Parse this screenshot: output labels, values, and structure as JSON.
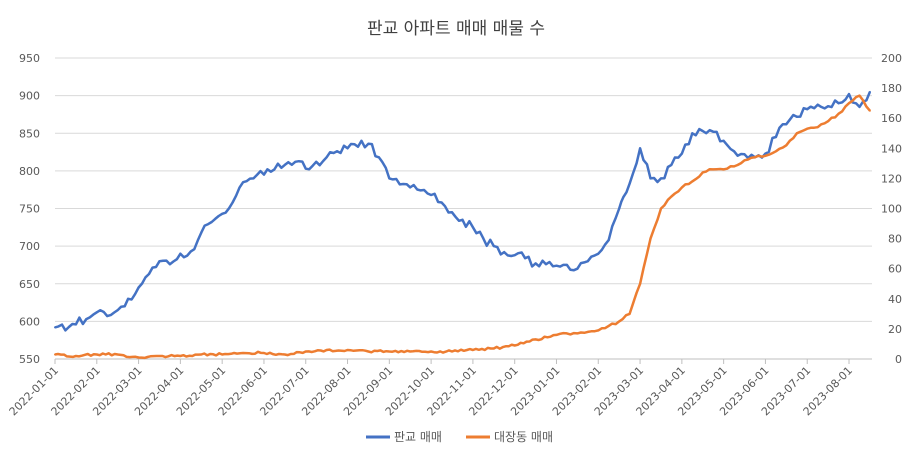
{
  "chart_data": {
    "type": "line",
    "title": "판교 아파트 매매 매물 수",
    "x_tick_labels": [
      "2022-01-01",
      "2022-02-01",
      "2022-03-01",
      "2022-04-01",
      "2022-05-01",
      "2022-06-01",
      "2022-07-01",
      "2022-08-01",
      "2022-09-01",
      "2022-10-01",
      "2022-11-01",
      "2022-12-01",
      "2023-01-01",
      "2023-02-01",
      "2023-03-01",
      "2023-04-01",
      "2023-05-01",
      "2023-06-01",
      "2023-07-01",
      "2023-08-01"
    ],
    "x_tick_month_offsets": [
      0,
      1,
      2,
      3,
      4,
      5,
      6,
      7,
      8,
      9,
      10,
      11,
      12,
      13,
      14,
      15,
      16,
      17,
      18,
      19
    ],
    "x_range_months": [
      0,
      19.55
    ],
    "y_left": {
      "min": 550,
      "max": 950,
      "step": 50,
      "ticks": [
        "550",
        "600",
        "650",
        "700",
        "750",
        "800",
        "850",
        "900",
        "950"
      ]
    },
    "y_right": {
      "min": 0,
      "max": 200,
      "step": 20,
      "ticks": [
        "0",
        "20",
        "40",
        "60",
        "80",
        "100",
        "120",
        "140",
        "160",
        "180",
        "200"
      ]
    },
    "grid": true,
    "legend_position": "bottom",
    "series": [
      {
        "name": "판교 매매",
        "axis": "left",
        "color": "#4472c4",
        "x_months": [
          0,
          0.25,
          0.5,
          0.75,
          1,
          1.25,
          1.5,
          1.75,
          2,
          2.25,
          2.5,
          2.75,
          3,
          3.25,
          3.5,
          3.75,
          4,
          4.25,
          4.5,
          4.75,
          5,
          5.25,
          5.5,
          5.75,
          6,
          6.25,
          6.5,
          6.75,
          7,
          7.25,
          7.5,
          7.75,
          8,
          8.25,
          8.5,
          8.75,
          9,
          9.25,
          9.5,
          9.75,
          10,
          10.25,
          10.5,
          10.75,
          11,
          11.25,
          11.5,
          11.75,
          12,
          12.25,
          12.5,
          12.75,
          13,
          13.25,
          13.5,
          13.6,
          13.75,
          14,
          14.25,
          14.5,
          14.75,
          15,
          15.25,
          15.5,
          15.75,
          16,
          16.25,
          16.5,
          16.75,
          17,
          17.25,
          17.5,
          17.75,
          18,
          18.25,
          18.5,
          18.75,
          19,
          19.25,
          19.5
        ],
        "values": [
          592,
          588,
          596,
          603,
          612,
          607,
          615,
          630,
          645,
          663,
          680,
          676,
          690,
          693,
          718,
          732,
          743,
          758,
          785,
          790,
          795,
          802,
          808,
          812,
          803,
          812,
          818,
          826,
          830,
          832,
          836,
          818,
          790,
          782,
          778,
          774,
          768,
          758,
          745,
          735,
          725,
          710,
          700,
          692,
          688,
          684,
          677,
          676,
          674,
          675,
          670,
          680,
          690,
          708,
          750,
          765,
          783,
          830,
          790,
          790,
          808,
          823,
          850,
          853,
          852,
          840,
          826,
          822,
          818,
          823,
          845,
          862,
          872,
          882,
          888,
          886,
          890,
          902,
          885,
          905
        ]
      },
      {
        "name": "대장동 매매",
        "axis": "right",
        "color": "#ed7d31",
        "x_months": [
          0,
          0.5,
          1,
          1.5,
          2,
          2.5,
          3,
          3.5,
          4,
          4.5,
          5,
          5.5,
          6,
          6.5,
          7,
          7.5,
          8,
          8.5,
          9,
          9.5,
          10,
          10.5,
          11,
          11.5,
          12,
          12.25,
          12.5,
          12.75,
          13,
          13.25,
          13.5,
          13.75,
          14,
          14.25,
          14.5,
          14.75,
          15,
          15.25,
          15.5,
          15.75,
          16,
          16.25,
          16.5,
          16.75,
          17,
          17.25,
          17.5,
          17.75,
          18,
          18.25,
          18.5,
          18.75,
          19,
          19.25,
          19.5
        ],
        "values": [
          3,
          2,
          3,
          3,
          1,
          2,
          2,
          3,
          3,
          4,
          4,
          3,
          5,
          6,
          6,
          5,
          5,
          5,
          5,
          5,
          6,
          7,
          9,
          13,
          16,
          17,
          17,
          18,
          19,
          22,
          25,
          30,
          50,
          80,
          100,
          108,
          114,
          118,
          124,
          126,
          126,
          128,
          132,
          134,
          135,
          138,
          142,
          150,
          153,
          154,
          158,
          163,
          170,
          175,
          165
        ]
      }
    ]
  }
}
